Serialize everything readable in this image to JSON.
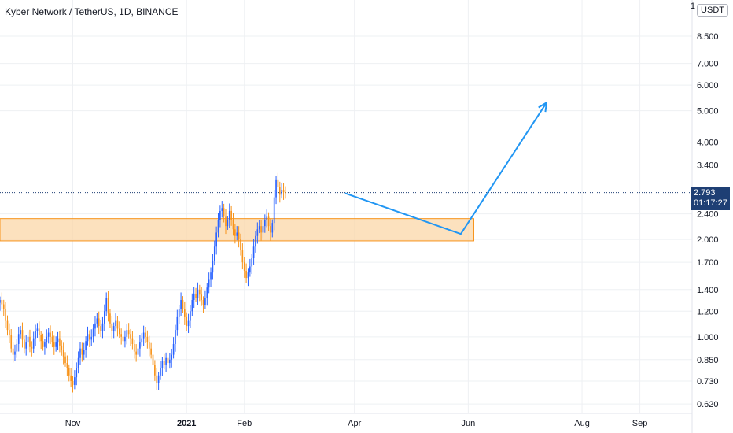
{
  "header": {
    "title": "Kyber Network / TetherUS, 1D, BINANCE",
    "currency": "USDT"
  },
  "price_label": {
    "price": "2.793",
    "countdown": "01:17:27",
    "value": 2.793
  },
  "top_axis_fragment": "1",
  "colors": {
    "up": "#2962ff",
    "down": "#f7931a",
    "zone_fill": "#fbd7a8",
    "zone_stroke": "#f7931a",
    "projection": "#2196f3",
    "price_line": "#1e3f74",
    "grid": "#eef0f3",
    "axis_text": "#131722"
  },
  "chart_data": {
    "type": "candlestick",
    "title": "Kyber Network / TetherUS, 1D, BINANCE",
    "y_scale": "log",
    "ylim": [
      0.58,
      11
    ],
    "xlim": [
      "2020-09-23",
      "2021-09-29"
    ],
    "y_ticks": [
      "0.620",
      "0.730",
      "0.850",
      "1.000",
      "1.200",
      "1.400",
      "1.700",
      "2.000",
      "2.400",
      "3.400",
      "4.000",
      "5.000",
      "6.000",
      "7.000",
      "8.500"
    ],
    "x_ticks": [
      {
        "date": "2020-11-01",
        "label": "Nov"
      },
      {
        "date": "2021-01-01",
        "label": "2021"
      },
      {
        "date": "2021-02-01",
        "label": "Feb"
      },
      {
        "date": "2021-04-01",
        "label": "Apr"
      },
      {
        "date": "2021-06-01",
        "label": "Jun"
      },
      {
        "date": "2021-08-01",
        "label": "Aug"
      },
      {
        "date": "2021-09-01",
        "label": "Sep"
      }
    ],
    "grid": true,
    "last_price": 2.793,
    "candle_start": "2020-09-23",
    "closes": [
      1.3,
      1.26,
      1.22,
      1.12,
      1.05,
      1.01,
      0.92,
      0.88,
      0.9,
      0.95,
      1.02,
      1.05,
      0.98,
      0.92,
      0.96,
      1.0,
      0.93,
      0.92,
      0.99,
      1.04,
      1.06,
      1.01,
      0.97,
      0.93,
      0.96,
      1.0,
      1.03,
      1.0,
      0.96,
      0.93,
      0.96,
      0.99,
      0.94,
      0.91,
      0.87,
      0.83,
      0.8,
      0.76,
      0.73,
      0.71,
      0.75,
      0.8,
      0.86,
      0.92,
      0.88,
      0.91,
      0.97,
      1.02,
      0.98,
      1.0,
      1.06,
      1.1,
      1.14,
      1.08,
      1.04,
      1.1,
      1.2,
      1.32,
      1.18,
      1.1,
      1.04,
      1.08,
      1.12,
      1.06,
      1.02,
      1.0,
      0.97,
      1.0,
      1.05,
      1.02,
      0.99,
      0.95,
      0.9,
      0.88,
      0.92,
      0.96,
      0.99,
      1.03,
      1.0,
      0.96,
      0.92,
      0.88,
      0.82,
      0.76,
      0.72,
      0.76,
      0.8,
      0.84,
      0.82,
      0.86,
      0.83,
      0.85,
      0.88,
      0.95,
      1.05,
      1.15,
      1.22,
      1.3,
      1.22,
      1.15,
      1.08,
      1.12,
      1.2,
      1.3,
      1.36,
      1.32,
      1.4,
      1.35,
      1.3,
      1.25,
      1.32,
      1.42,
      1.5,
      1.58,
      1.72,
      1.9,
      2.1,
      2.3,
      2.45,
      2.5,
      2.35,
      2.2,
      2.3,
      2.45,
      2.3,
      2.15,
      2.05,
      2.1,
      2.0,
      1.85,
      1.7,
      1.6,
      1.52,
      1.58,
      1.65,
      1.75,
      1.9,
      2.05,
      2.15,
      2.2,
      2.1,
      2.2,
      2.3,
      2.35,
      2.2,
      2.1,
      2.25,
      2.7,
      3.05,
      2.9,
      2.75,
      2.85,
      2.8,
      2.79
    ]
  },
  "annotations": {
    "zone": {
      "from": "2020-09-23",
      "to": "2021-06-04",
      "low": 1.98,
      "high": 2.32
    },
    "projection": [
      {
        "date": "2021-03-27",
        "price": 2.78
      },
      {
        "date": "2021-05-28",
        "price": 2.08
      },
      {
        "date": "2021-07-13",
        "price": 5.3
      }
    ],
    "price_line_from": "2020-09-23"
  }
}
